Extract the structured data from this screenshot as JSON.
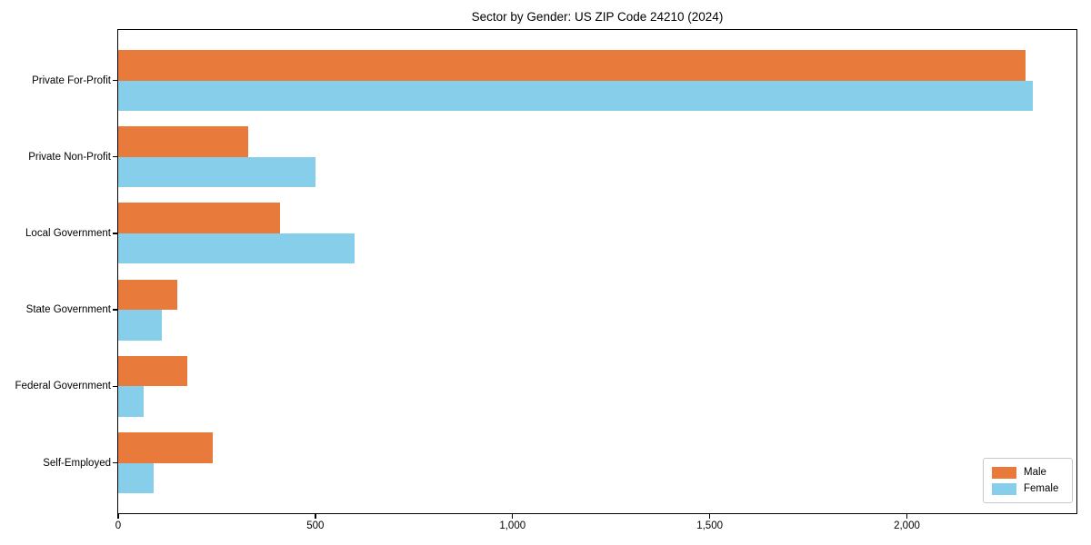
{
  "chart_data": {
    "type": "bar",
    "orientation": "horizontal",
    "title": "Sector by Gender: US ZIP Code 24210 (2024)",
    "categories": [
      "Private For-Profit",
      "Private Non-Profit",
      "Local Government",
      "State Government",
      "Federal Government",
      "Self-Employed"
    ],
    "series": [
      {
        "name": "Male",
        "color": "#e87a3c",
        "values": [
          2300,
          330,
          410,
          150,
          175,
          240
        ]
      },
      {
        "name": "Female",
        "color": "#87ceeb",
        "values": [
          2320,
          500,
          600,
          110,
          65,
          90
        ]
      }
    ],
    "xlabel": "",
    "ylabel": "",
    "xlim": [
      0,
      2430
    ],
    "xticks": {
      "values": [
        0,
        500,
        1000,
        1500,
        2000
      ],
      "labels": [
        "0",
        "500",
        "1,000",
        "1,500",
        "2,000"
      ]
    },
    "legend": {
      "position": "lower right",
      "entries": [
        "Male",
        "Female"
      ]
    },
    "grid": false,
    "axis_color": "#000000",
    "background": "#ffffff"
  }
}
